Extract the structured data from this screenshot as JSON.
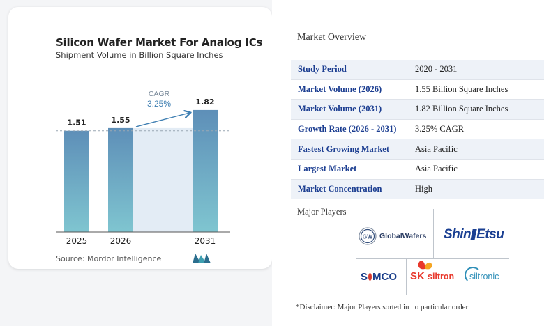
{
  "chart": {
    "title": "Silicon Wafer Market For Analog ICs",
    "subtitle": "Shipment Volume in Billion Square Inches",
    "source": "Source: Mordor Intelligence",
    "cagr_label": "CAGR",
    "cagr_value": "3.25%",
    "bar_labels": [
      "1.51",
      "1.55",
      "1.82"
    ]
  },
  "chart_data": {
    "type": "bar",
    "title": "Silicon Wafer Market For Analog ICs",
    "subtitle": "Shipment Volume in Billion Square Inches",
    "categories": [
      "2025",
      "2026",
      "2031"
    ],
    "values": [
      1.51,
      1.55,
      1.82
    ],
    "xlabel": "",
    "ylabel": "",
    "ylim": [
      0,
      1.9
    ],
    "grid": false,
    "annotations": [
      {
        "text": "CAGR 3.25%",
        "from": "2026",
        "to": "2031"
      }
    ],
    "colors": {
      "bar_top": "#5e8fb8",
      "bar_bottom": "#7fc5d0",
      "accent": "#3f7fb2",
      "band": "#e3ecf5"
    }
  },
  "overview": {
    "title": "Market Overview",
    "rows": [
      {
        "label": "Study Period",
        "value": "2020 - 2031"
      },
      {
        "label": "Market Volume (2026)",
        "value": "1.55 Billion Square Inches"
      },
      {
        "label": "Market Volume (2031)",
        "value": "1.82 Billion Square Inches"
      },
      {
        "label": "Growth Rate (2026 - 2031)",
        "value": "3.25% CAGR"
      },
      {
        "label": "Fastest Growing Market",
        "value": "Asia Pacific"
      },
      {
        "label": "Largest Market",
        "value": "Asia Pacific"
      },
      {
        "label": "Market Concentration",
        "value": "High"
      }
    ]
  },
  "players": {
    "title": "Major Players",
    "globalwafers": {
      "badge": "GW",
      "name": "GlobalWafers"
    },
    "shinetsu": {
      "part1": "Shin",
      "part2": "Etsu"
    },
    "sumco": {
      "s": "S",
      "rest": "MCO"
    },
    "sksiltron": {
      "sk": "SK",
      "name": "siltron"
    },
    "siltronic": {
      "name": "siltronic"
    },
    "disclaimer": "*Disclaimer: Major Players sorted in no particular order"
  }
}
